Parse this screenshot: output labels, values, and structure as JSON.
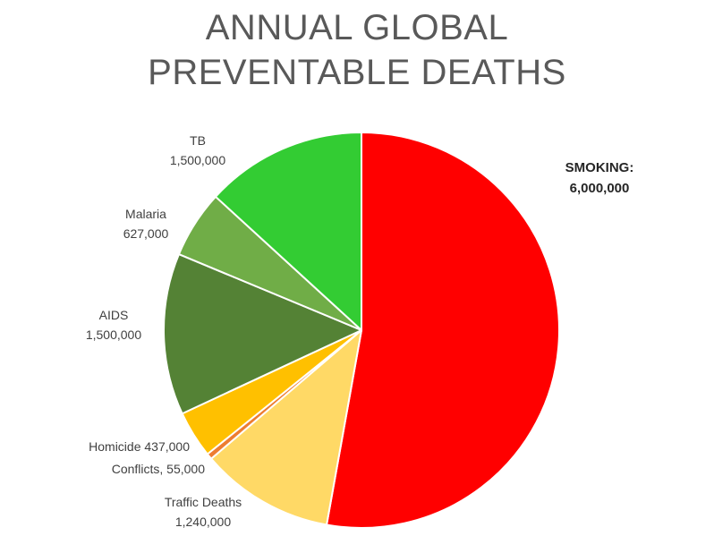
{
  "chart_data": {
    "type": "pie",
    "title_lines": [
      "ANNUAL GLOBAL",
      "PREVENTABLE DEATHS"
    ],
    "slices": [
      {
        "name": "SMOKING:",
        "value_label": "6,000,000",
        "value": 6000000,
        "color": "#ff0000"
      },
      {
        "name": "Traffic Deaths",
        "value_label": "1,240,000",
        "value": 1240000,
        "color": "#ffd966"
      },
      {
        "name": "Conflicts, 55,000",
        "value_label": "",
        "value": 55000,
        "color": "#ed7d31"
      },
      {
        "name": "Homicide 437,000",
        "value_label": "",
        "value": 437000,
        "color": "#ffc000"
      },
      {
        "name": "AIDS",
        "value_label": "1,500,000",
        "value": 1500000,
        "color": "#548235"
      },
      {
        "name": "Malaria",
        "value_label": "627,000",
        "value": 627000,
        "color": "#70ad47"
      },
      {
        "name": "TB",
        "value_label": "1,500,000",
        "value": 1500000,
        "color": "#33cc33"
      }
    ],
    "legend": "none",
    "start_angle_deg": 0,
    "direction": "clockwise"
  }
}
